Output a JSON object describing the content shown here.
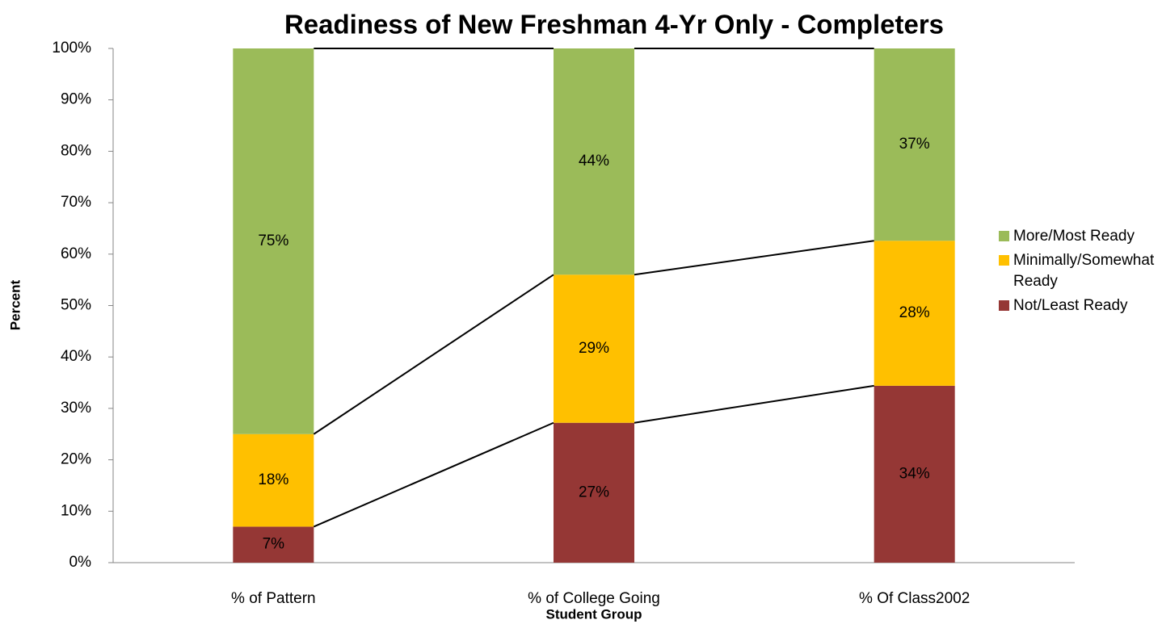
{
  "chart_data": {
    "type": "bar",
    "stacked": true,
    "title": "Readiness of New Freshman 4-Yr Only - Completers",
    "xlabel": "Student Group",
    "ylabel": "Percent",
    "categories": [
      "% of Pattern",
      "% of College Going",
      "% Of Class2002"
    ],
    "series": [
      {
        "name": "Not/Least Ready",
        "color": "#953735",
        "values": [
          7,
          27.2,
          34.4
        ],
        "value_labels": [
          "7%",
          "27%",
          "34%"
        ]
      },
      {
        "name": "Minimally/Somewhat Ready",
        "color": "#ffc000",
        "values": [
          18,
          28.8,
          28.2
        ],
        "value_labels": [
          "18%",
          "29%",
          "28%"
        ]
      },
      {
        "name": "More/Most Ready",
        "color": "#9bbb59",
        "values": [
          75,
          44,
          37.4
        ],
        "value_labels": [
          "75%",
          "44%",
          "37%"
        ]
      }
    ],
    "ylim": [
      0,
      100
    ],
    "yticks": [
      {
        "value": 0,
        "label": "0%"
      },
      {
        "value": 10,
        "label": "10%"
      },
      {
        "value": 20,
        "label": "20%"
      },
      {
        "value": 30,
        "label": "30%"
      },
      {
        "value": 40,
        "label": "40%"
      },
      {
        "value": 50,
        "label": "50%"
      },
      {
        "value": 60,
        "label": "60%"
      },
      {
        "value": 70,
        "label": "70%"
      },
      {
        "value": 80,
        "label": "80%"
      },
      {
        "value": 90,
        "label": "90%"
      },
      {
        "value": 100,
        "label": "100%"
      }
    ],
    "grid": false,
    "legend": "right"
  }
}
